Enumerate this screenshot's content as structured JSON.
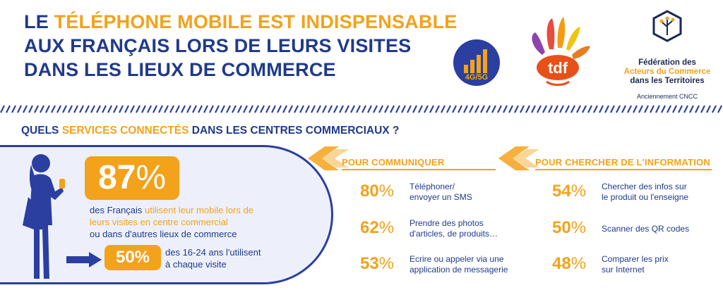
{
  "title": {
    "line1_a": "LE ",
    "line1_hl": "TÉLÉPHONE MOBILE EST INDISPENSABLE",
    "line2": "AUX FRANÇAIS LORS DE LEURS VISITES",
    "line3": "DANS LES LIEUX DE COMMERCE"
  },
  "badge": {
    "label": "4G/5G",
    "icon": "signal-bars-icon"
  },
  "tdf_logo": {
    "text": "tdf"
  },
  "federation": {
    "line1": "Fédération des",
    "line2": "Acteurs du Commerce",
    "line3": "dans les Territoires",
    "formerly": "Anciennement CNCC"
  },
  "question": {
    "pre": "QUELS ",
    "hl": "SERVICES CONNECTÉS",
    "post": " DANS LES CENTRES COMMERCIAUX ?"
  },
  "main_stat": {
    "value": "87",
    "unit": "%",
    "text_a": "des Français ",
    "text_hl": "utilisent leur mobile lors de leurs visites en centre commercial",
    "text_b": "ou dans d'autres lieux de commerce"
  },
  "sub_stat": {
    "value": "50%",
    "text_line1": "des 16-24 ans l'utilisent",
    "text_line2": "à chaque visite"
  },
  "communiquer": {
    "heading": "POUR COMMUNIQUER",
    "items": [
      {
        "value": "80",
        "unit": "%",
        "line1": "Téléphoner/",
        "line2": "envoyer un SMS"
      },
      {
        "value": "62",
        "unit": "%",
        "line1": "Prendre des photos",
        "line2": "d'articles, de produits…"
      },
      {
        "value": "53",
        "unit": "%",
        "line1": "Ecrire ou appeler via une",
        "line2": "application de messagerie"
      }
    ]
  },
  "information": {
    "heading": "POUR CHERCHER DE L'INFORMATION",
    "items": [
      {
        "value": "54",
        "unit": "%",
        "line1": "Chercher des infos sur",
        "line2": "le produit ou l'enseigne"
      },
      {
        "value": "50",
        "unit": "%",
        "line1": "Scanner des QR codes",
        "line2": ""
      },
      {
        "value": "48",
        "unit": "%",
        "line1": "Comparer les prix",
        "line2": "sur Internet"
      }
    ]
  },
  "colors": {
    "navy": "#1f3a8a",
    "orange": "#f3a21b",
    "panel": "#edf0fb"
  }
}
